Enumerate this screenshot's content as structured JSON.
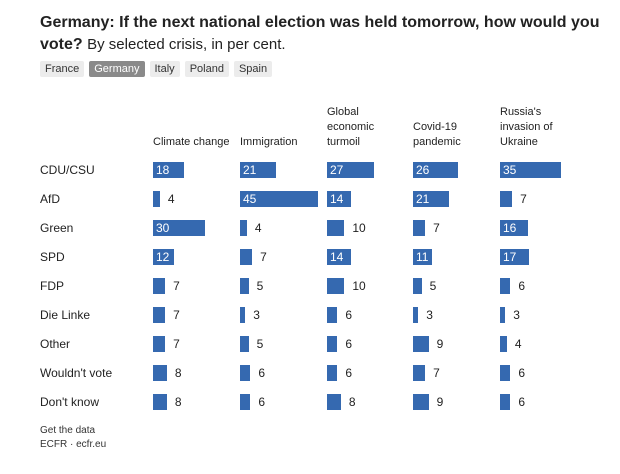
{
  "chart_data": {
    "type": "bar",
    "title": "Germany: If the next national election was held tomorrow, how would you vote?",
    "subtitle": "By selected crisis, in per cent.",
    "tabs": [
      "France",
      "Germany",
      "Italy",
      "Poland",
      "Spain"
    ],
    "selected_tab": 1,
    "categories": [
      "CDU/CSU",
      "AfD",
      "Green",
      "SPD",
      "FDP",
      "Die Linke",
      "Other",
      "Wouldn't vote",
      "Don't know"
    ],
    "series": [
      {
        "name": "Climate change",
        "color": "#3569b0",
        "values": [
          18,
          4,
          30,
          12,
          7,
          7,
          7,
          8,
          8
        ]
      },
      {
        "name": "Immigration",
        "color": "#3569b0",
        "values": [
          21,
          45,
          4,
          7,
          5,
          3,
          5,
          6,
          6
        ]
      },
      {
        "name": "Global economic turmoil",
        "color": "#3569b0",
        "values": [
          27,
          14,
          10,
          14,
          10,
          6,
          6,
          6,
          8
        ]
      },
      {
        "name": "Covid-19 pandemic",
        "color": "#3569b0",
        "values": [
          26,
          21,
          7,
          11,
          5,
          3,
          9,
          7,
          9
        ]
      },
      {
        "name": "Russia's invasion of Ukraine",
        "color": "#3569b0",
        "values": [
          35,
          7,
          16,
          17,
          6,
          3,
          4,
          6,
          6
        ]
      }
    ],
    "xlim": [
      0,
      45
    ],
    "footer": [
      "Get the data",
      "ECFR · ecfr.eu"
    ]
  }
}
